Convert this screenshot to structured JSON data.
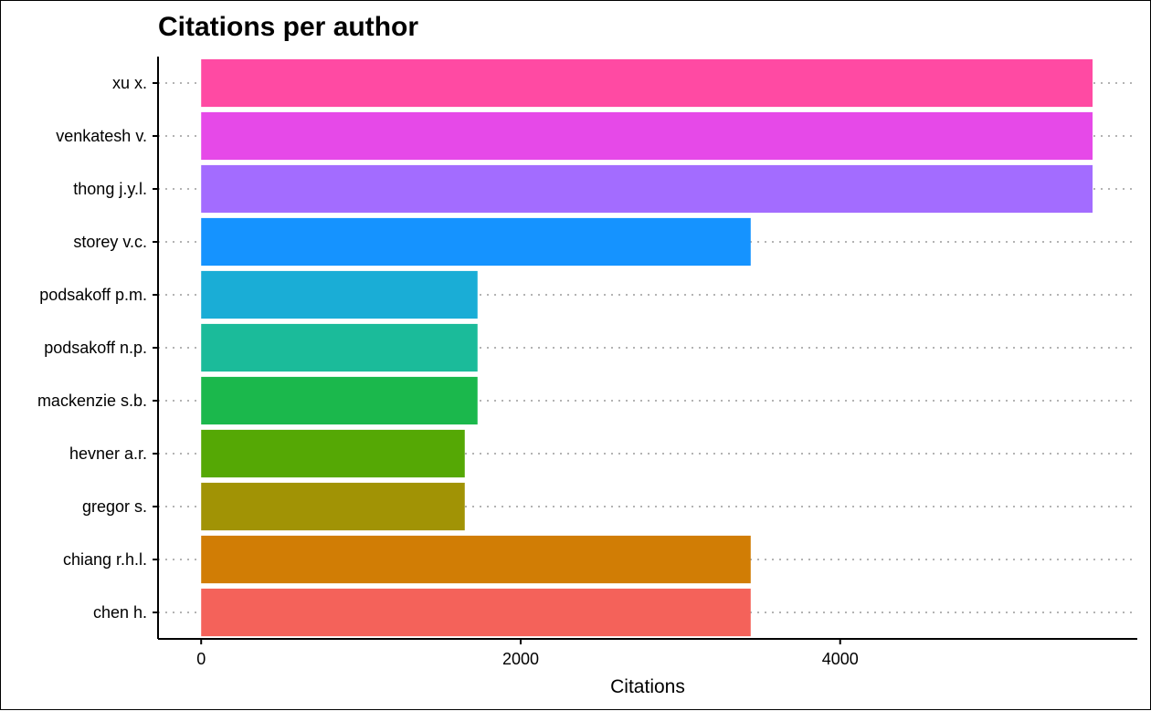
{
  "chart_data": {
    "type": "bar",
    "orientation": "horizontal",
    "title": "Citations per author",
    "xlabel": "Citations",
    "ylabel": "",
    "xlim": [
      -270,
      5860
    ],
    "x_ticks": [
      0,
      2000,
      4000
    ],
    "x_tick_labels": [
      "0",
      "2000",
      "4000"
    ],
    "grid": "dotted horizontal lines per category",
    "legend": "none",
    "categories": [
      "xu x.",
      "venkatesh v.",
      "thong j.y.l.",
      "storey v.c.",
      "podsakoff p.m.",
      "podsakoff n.p.",
      "mackenzie s.b.",
      "hevner a.r.",
      "gregor s.",
      "chiang r.h.l.",
      "chen h."
    ],
    "values": [
      5580,
      5580,
      5580,
      3440,
      1730,
      1730,
      1730,
      1650,
      1650,
      3440,
      3440
    ],
    "colors": [
      "#FF4AA3",
      "#E649E8",
      "#A36CFF",
      "#1593FF",
      "#1AADD6",
      "#1BBB9A",
      "#1BB84C",
      "#55A805",
      "#A19305",
      "#D17D05",
      "#F4625A"
    ]
  }
}
